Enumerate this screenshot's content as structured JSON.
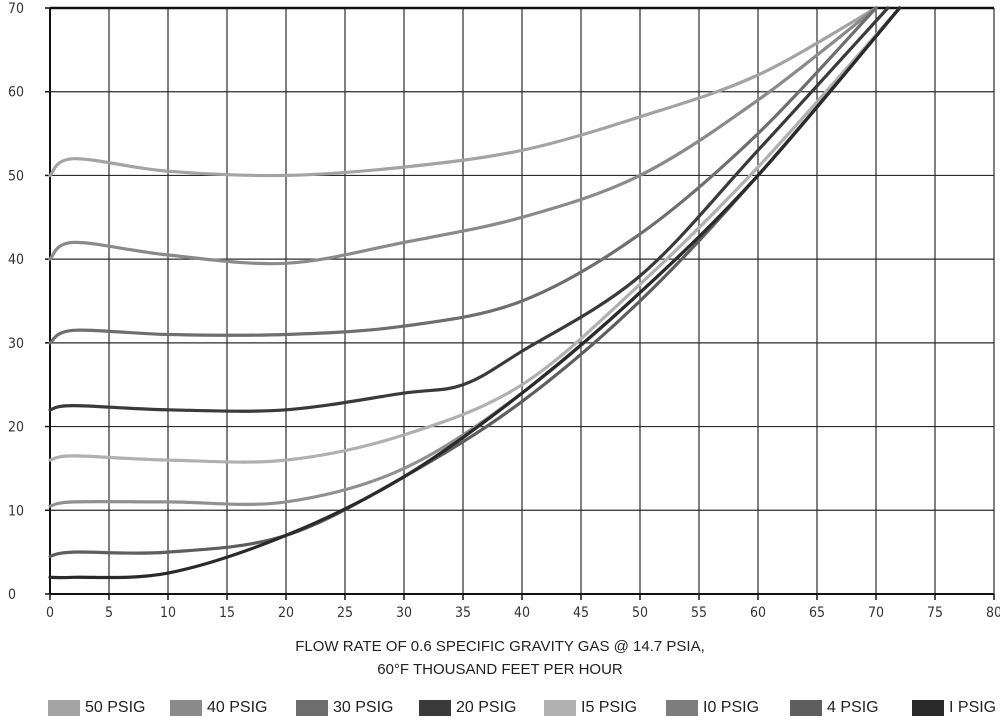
{
  "chart_data": {
    "type": "line",
    "title": "",
    "xlabel": [
      "FLOW RATE OF 0.6 SPECIFIC GRAVITY GAS @ 14.7 PSIA,",
      "60°F THOUSAND FEET PER HOUR"
    ],
    "ylabel": "",
    "xlim": [
      0,
      80
    ],
    "ylim": [
      0,
      70
    ],
    "xticks": [
      0,
      5,
      10,
      15,
      20,
      25,
      30,
      35,
      40,
      45,
      50,
      55,
      60,
      65,
      70,
      75,
      80
    ],
    "yticks": [
      0,
      10,
      20,
      30,
      40,
      50,
      60,
      70
    ],
    "grid": true,
    "legend_position": "bottom",
    "series": [
      {
        "name": "50 PSIG",
        "color": "#a3a3a3",
        "x": [
          0,
          2,
          10,
          20,
          30,
          40,
          50,
          60,
          70
        ],
        "y": [
          50,
          52,
          50.5,
          50,
          51,
          53,
          57,
          62,
          70
        ]
      },
      {
        "name": "40 PSIG",
        "color": "#8a8a8a",
        "x": [
          0,
          2,
          10,
          20,
          30,
          40,
          50,
          60,
          70
        ],
        "y": [
          40,
          42,
          40.5,
          39.5,
          42,
          45,
          50,
          59,
          70
        ]
      },
      {
        "name": "30 PSIG",
        "color": "#6e6e6e",
        "x": [
          0,
          2,
          10,
          20,
          30,
          40,
          50,
          60,
          70
        ],
        "y": [
          30,
          31.5,
          31,
          31,
          32,
          35,
          43,
          55,
          70
        ]
      },
      {
        "name": "20 PSIG",
        "color": "#3a3a3a",
        "x": [
          0,
          2,
          10,
          20,
          30,
          35,
          40,
          50,
          60,
          71
        ],
        "y": [
          22,
          22.5,
          22,
          22,
          24,
          25,
          29,
          38,
          53,
          70
        ]
      },
      {
        "name": "15 PSIG",
        "color": "#b0b0b0",
        "x": [
          0,
          2,
          10,
          20,
          30,
          40,
          50,
          60,
          72
        ],
        "y": [
          16,
          16.5,
          16,
          16,
          19,
          25,
          37,
          51,
          70
        ]
      },
      {
        "name": "10 PSIG",
        "color": "#909090",
        "x": [
          0,
          2,
          10,
          20,
          30,
          40,
          50,
          60,
          72
        ],
        "y": [
          10.5,
          11,
          11,
          11,
          15,
          24,
          36,
          50,
          70
        ]
      },
      {
        "name": "4 PSIG",
        "color": "#5e5e5e",
        "x": [
          0,
          2,
          10,
          20,
          30,
          40,
          50,
          60,
          72
        ],
        "y": [
          4.5,
          5,
          5,
          7,
          14,
          23,
          35,
          50,
          70
        ]
      },
      {
        "name": "1 PSIG",
        "color": "#2a2a2a",
        "x": [
          0,
          2,
          10,
          20,
          30,
          40,
          50,
          60,
          72
        ],
        "y": [
          2,
          2,
          2.5,
          7,
          14,
          24,
          36,
          50,
          70
        ]
      }
    ]
  },
  "legend": [
    {
      "label": "50 PSIG",
      "color": "#a3a3a3"
    },
    {
      "label": "40 PSIG",
      "color": "#8a8a8a"
    },
    {
      "label": "30 PSIG",
      "color": "#6e6e6e"
    },
    {
      "label": "20 PSIG",
      "color": "#3a3a3a"
    },
    {
      "label": "I5 PSIG",
      "color": "#b0b0b0"
    },
    {
      "label": "I0 PSIG",
      "color": "#7d7d7d"
    },
    {
      "label": "4 PSIG",
      "color": "#5e5e5e"
    },
    {
      "label": "I PSIG",
      "color": "#2a2a2a"
    }
  ]
}
